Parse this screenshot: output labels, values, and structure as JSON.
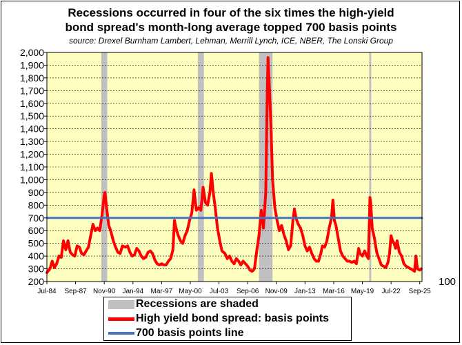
{
  "chart_data": {
    "type": "line",
    "title_lines": [
      "Recessions occurred in four of the six times the high-yield",
      "bond spread's month-long average topped 700 basis points"
    ],
    "subtitle": "source: Drexel Burnham Lambert, Lehman, Merrill Lynch, ICE, NBER, The Lonski Group",
    "xlim": [
      "1984-07",
      "2025-12"
    ],
    "ylim": [
      200,
      2000
    ],
    "yticks": [
      200,
      300,
      400,
      500,
      600,
      700,
      800,
      900,
      1000,
      1100,
      1200,
      1300,
      1400,
      1500,
      1600,
      1700,
      1800,
      1900,
      2000
    ],
    "ytick_labels": [
      "200",
      "300",
      "400",
      "500",
      "600",
      "700",
      "800",
      "900",
      "1,000",
      "1,100",
      "1,200",
      "1,300",
      "1,400",
      "1,500",
      "1,600",
      "1,700",
      "1,800",
      "1,900",
      "2,000"
    ],
    "xticks": [
      "1984-07",
      "1987-09",
      "1990-11",
      "1994-01",
      "1997-03",
      "2000-05",
      "2003-07",
      "2006-09",
      "2009-11",
      "2013-01",
      "2016-03",
      "2019-05",
      "2022-07",
      "2025-09"
    ],
    "xtick_labels": [
      "Jul-84",
      "Sep-87",
      "Nov-90",
      "Jan-94",
      "Mar-97",
      "May-00",
      "Jul-03",
      "Sep-06",
      "Nov-09",
      "Jan-13",
      "Mar-16",
      "May-19",
      "Jul-22",
      "Sep-25"
    ],
    "extra_label": "100",
    "recessions": [
      [
        "1990-07",
        "1991-03"
      ],
      [
        "2001-03",
        "2001-11"
      ],
      [
        "2007-12",
        "2009-06"
      ],
      [
        "2020-02",
        "2020-04"
      ]
    ],
    "series": [
      {
        "name": "High yield bond spread: basis points",
        "color": "#ff0000",
        "points": [
          [
            "1984-07",
            270
          ],
          [
            "1984-11",
            300
          ],
          [
            "1985-02",
            360
          ],
          [
            "1985-05",
            310
          ],
          [
            "1985-08",
            340
          ],
          [
            "1985-11",
            400
          ],
          [
            "1986-02",
            390
          ],
          [
            "1986-05",
            520
          ],
          [
            "1986-08",
            450
          ],
          [
            "1986-11",
            520
          ],
          [
            "1987-02",
            430
          ],
          [
            "1987-05",
            410
          ],
          [
            "1987-08",
            400
          ],
          [
            "1987-11",
            480
          ],
          [
            "1988-02",
            470
          ],
          [
            "1988-05",
            420
          ],
          [
            "1988-08",
            410
          ],
          [
            "1988-11",
            440
          ],
          [
            "1989-02",
            470
          ],
          [
            "1989-05",
            560
          ],
          [
            "1989-08",
            650
          ],
          [
            "1989-11",
            600
          ],
          [
            "1990-02",
            620
          ],
          [
            "1990-05",
            600
          ],
          [
            "1990-08",
            720
          ],
          [
            "1990-11",
            880
          ],
          [
            "1990-12",
            900
          ],
          [
            "1991-02",
            780
          ],
          [
            "1991-05",
            640
          ],
          [
            "1991-08",
            590
          ],
          [
            "1991-11",
            520
          ],
          [
            "1992-02",
            470
          ],
          [
            "1992-05",
            430
          ],
          [
            "1992-08",
            420
          ],
          [
            "1992-11",
            480
          ],
          [
            "1993-03",
            470
          ],
          [
            "1993-06",
            480
          ],
          [
            "1993-09",
            430
          ],
          [
            "1993-12",
            400
          ],
          [
            "1994-03",
            410
          ],
          [
            "1994-06",
            460
          ],
          [
            "1994-09",
            440
          ],
          [
            "1994-12",
            400
          ],
          [
            "1995-03",
            380
          ],
          [
            "1995-06",
            390
          ],
          [
            "1995-09",
            430
          ],
          [
            "1995-12",
            440
          ],
          [
            "1996-03",
            420
          ],
          [
            "1996-06",
            370
          ],
          [
            "1996-09",
            340
          ],
          [
            "1996-12",
            330
          ],
          [
            "1997-03",
            340
          ],
          [
            "1997-06",
            330
          ],
          [
            "1997-09",
            330
          ],
          [
            "1997-12",
            360
          ],
          [
            "1998-03",
            380
          ],
          [
            "1998-06",
            450
          ],
          [
            "1998-08",
            680
          ],
          [
            "1998-10",
            620
          ],
          [
            "1999-01",
            560
          ],
          [
            "1999-04",
            520
          ],
          [
            "1999-07",
            500
          ],
          [
            "1999-10",
            560
          ],
          [
            "2000-01",
            600
          ],
          [
            "2000-04",
            680
          ],
          [
            "2000-07",
            740
          ],
          [
            "2000-10",
            920
          ],
          [
            "2001-01",
            760
          ],
          [
            "2001-04",
            780
          ],
          [
            "2001-07",
            760
          ],
          [
            "2001-10",
            940
          ],
          [
            "2002-01",
            820
          ],
          [
            "2002-04",
            800
          ],
          [
            "2002-07",
            900
          ],
          [
            "2002-09",
            1050
          ],
          [
            "2002-11",
            920
          ],
          [
            "2003-02",
            780
          ],
          [
            "2003-05",
            620
          ],
          [
            "2003-08",
            520
          ],
          [
            "2003-11",
            440
          ],
          [
            "2004-03",
            420
          ],
          [
            "2004-06",
            380
          ],
          [
            "2004-09",
            400
          ],
          [
            "2004-12",
            360
          ],
          [
            "2005-03",
            340
          ],
          [
            "2005-06",
            380
          ],
          [
            "2005-09",
            360
          ],
          [
            "2005-12",
            330
          ],
          [
            "2006-03",
            360
          ],
          [
            "2006-06",
            340
          ],
          [
            "2006-09",
            320
          ],
          [
            "2006-12",
            290
          ],
          [
            "2007-03",
            280
          ],
          [
            "2007-06",
            300
          ],
          [
            "2007-09",
            440
          ],
          [
            "2007-12",
            560
          ],
          [
            "2008-03",
            760
          ],
          [
            "2008-06",
            620
          ],
          [
            "2008-09",
            900
          ],
          [
            "2008-11",
            1680
          ],
          [
            "2008-12",
            1960
          ],
          [
            "2009-02",
            1700
          ],
          [
            "2009-04",
            1400
          ],
          [
            "2009-06",
            1000
          ],
          [
            "2009-09",
            780
          ],
          [
            "2009-12",
            680
          ],
          [
            "2010-03",
            600
          ],
          [
            "2010-06",
            640
          ],
          [
            "2010-09",
            570
          ],
          [
            "2010-12",
            520
          ],
          [
            "2011-03",
            450
          ],
          [
            "2011-06",
            480
          ],
          [
            "2011-09",
            680
          ],
          [
            "2011-11",
            770
          ],
          [
            "2012-01",
            700
          ],
          [
            "2012-04",
            650
          ],
          [
            "2012-07",
            620
          ],
          [
            "2012-10",
            560
          ],
          [
            "2013-01",
            480
          ],
          [
            "2013-04",
            440
          ],
          [
            "2013-07",
            470
          ],
          [
            "2013-10",
            420
          ],
          [
            "2014-01",
            380
          ],
          [
            "2014-04",
            360
          ],
          [
            "2014-07",
            360
          ],
          [
            "2014-10",
            420
          ],
          [
            "2014-12",
            480
          ],
          [
            "2015-03",
            470
          ],
          [
            "2015-06",
            520
          ],
          [
            "2015-09",
            620
          ],
          [
            "2015-12",
            700
          ],
          [
            "2016-02",
            840
          ],
          [
            "2016-04",
            680
          ],
          [
            "2016-06",
            640
          ],
          [
            "2016-09",
            540
          ],
          [
            "2016-12",
            440
          ],
          [
            "2017-03",
            400
          ],
          [
            "2017-06",
            380
          ],
          [
            "2017-09",
            360
          ],
          [
            "2017-12",
            360
          ],
          [
            "2018-03",
            350
          ],
          [
            "2018-06",
            360
          ],
          [
            "2018-09",
            340
          ],
          [
            "2018-12",
            460
          ],
          [
            "2019-02",
            420
          ],
          [
            "2019-05",
            400
          ],
          [
            "2019-08",
            440
          ],
          [
            "2019-11",
            400
          ],
          [
            "2020-01",
            380
          ],
          [
            "2020-03",
            860
          ],
          [
            "2020-04",
            820
          ],
          [
            "2020-06",
            620
          ],
          [
            "2020-09",
            540
          ],
          [
            "2020-12",
            430
          ],
          [
            "2021-03",
            380
          ],
          [
            "2021-06",
            330
          ],
          [
            "2021-09",
            320
          ],
          [
            "2021-12",
            310
          ],
          [
            "2022-03",
            350
          ],
          [
            "2022-05",
            420
          ],
          [
            "2022-07",
            560
          ],
          [
            "2022-09",
            520
          ],
          [
            "2022-11",
            500
          ],
          [
            "2023-01",
            460
          ],
          [
            "2023-03",
            520
          ],
          [
            "2023-06",
            430
          ],
          [
            "2023-09",
            400
          ],
          [
            "2023-12",
            340
          ],
          [
            "2024-03",
            320
          ],
          [
            "2024-06",
            310
          ],
          [
            "2024-09",
            300
          ],
          [
            "2024-12",
            290
          ],
          [
            "2025-02",
            280
          ],
          [
            "2025-04",
            400
          ],
          [
            "2025-06",
            300
          ],
          [
            "2025-09",
            290
          ],
          [
            "2025-11",
            300
          ]
        ]
      },
      {
        "name": "700 basis points line",
        "color": "#4472c4",
        "points": [
          [
            "1984-07",
            700
          ],
          [
            "2025-12",
            700
          ]
        ]
      }
    ],
    "legend": [
      {
        "label": "Recessions are shaded",
        "color": "#c0c0c0",
        "kind": "block"
      },
      {
        "label": "High yield bond spread: basis points",
        "color": "#ff0000",
        "kind": "line"
      },
      {
        "label": "700 basis points line",
        "color": "#4472c4",
        "kind": "line"
      }
    ],
    "colors": {
      "plot_bg": "#ffffc0",
      "recession": "#c0c0c0",
      "grid": "#000000"
    }
  }
}
